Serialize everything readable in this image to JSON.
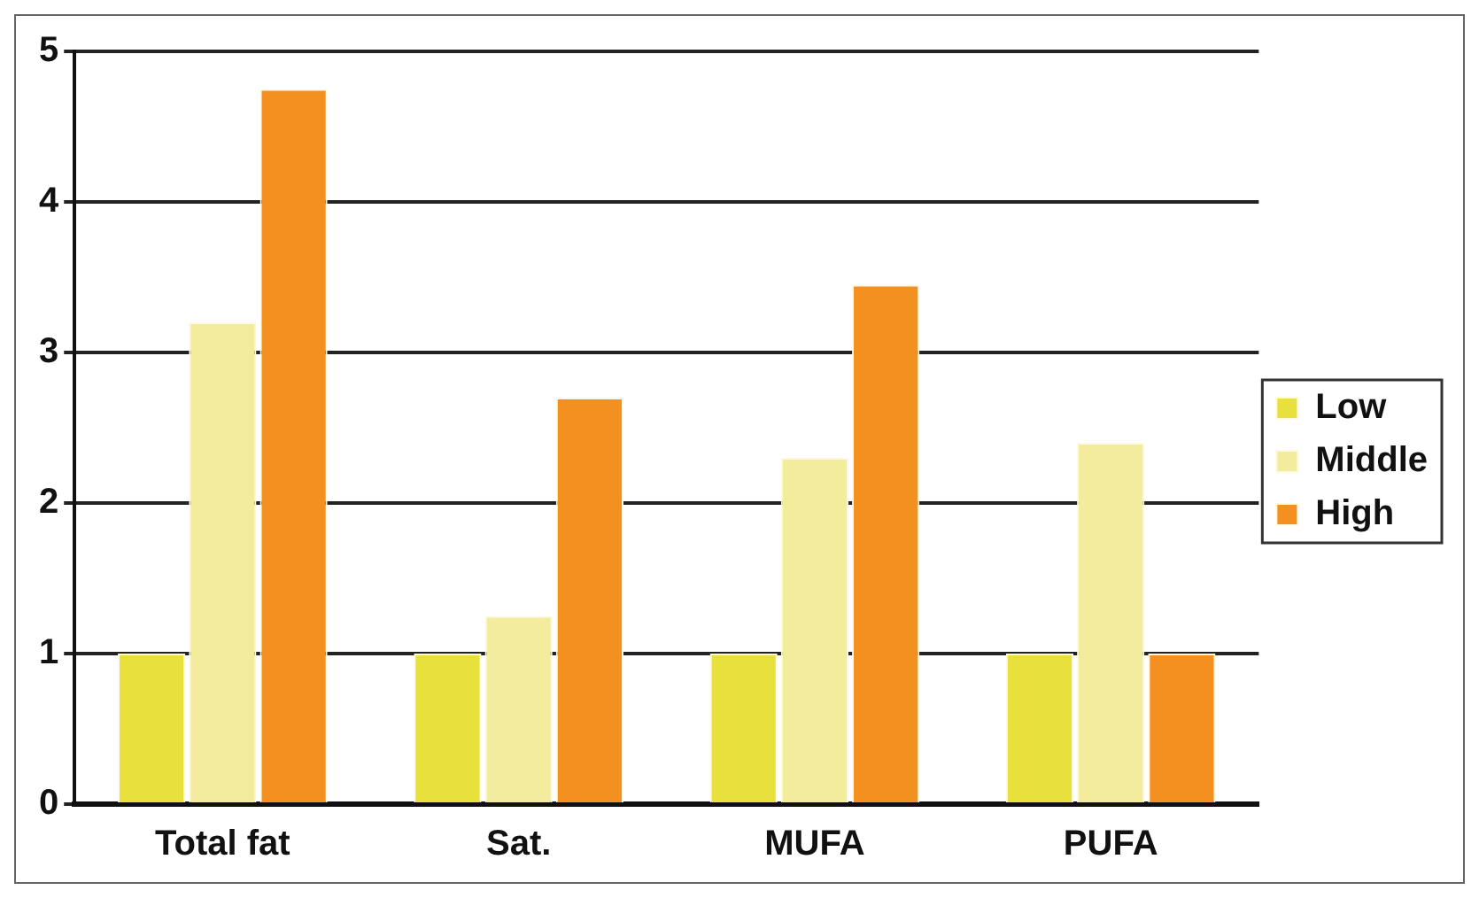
{
  "chart_data": {
    "type": "bar",
    "categories": [
      "Total fat",
      "Sat.",
      "MUFA",
      "PUFA"
    ],
    "series": [
      {
        "name": "Low",
        "color": "#e8e03c",
        "values": [
          1.0,
          1.0,
          1.0,
          1.0
        ]
      },
      {
        "name": "Middle",
        "color": "#f3ec9c",
        "values": [
          3.2,
          1.25,
          2.3,
          2.4
        ]
      },
      {
        "name": "High",
        "color": "#f39020",
        "values": [
          4.75,
          2.7,
          3.45,
          1.0
        ]
      }
    ],
    "ylim": [
      0,
      5
    ],
    "yticks": [
      0,
      1,
      2,
      3,
      4,
      5
    ],
    "grid": "y",
    "legend": "right"
  }
}
